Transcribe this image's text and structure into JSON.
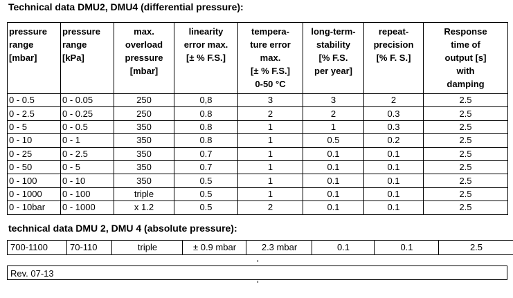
{
  "heading_differential": "Technical data DMU2, DMU4 (differential pressure):",
  "headers": [
    [
      "pressure",
      "range",
      "[mbar]"
    ],
    [
      "pressure",
      "range",
      "[kPa]"
    ],
    [
      "max.",
      "overload",
      "pressure",
      "[mbar]"
    ],
    [
      "linearity",
      "error max.",
      "[± % F.S.]"
    ],
    [
      "tempera-",
      "ture error",
      "max.",
      "[± % F.S.]",
      "0-50 °C"
    ],
    [
      "long-term-",
      "stability",
      "[% F.S.",
      "per year]"
    ],
    [
      "repeat-",
      "precision",
      "[% F. S.]"
    ],
    [
      "Response",
      "time of",
      "output [s]",
      "with",
      "damping"
    ]
  ],
  "rows": [
    [
      "0 - 0.5",
      "0 - 0.05",
      "250",
      "0,8",
      "3",
      "3",
      "2",
      "2.5"
    ],
    [
      "0 - 2.5",
      "0 - 0.25",
      "250",
      "0.8",
      "2",
      "2",
      "0.3",
      "2.5"
    ],
    [
      "0 - 5",
      "0 - 0.5",
      "350",
      "0.8",
      "1",
      "1",
      "0.3",
      "2.5"
    ],
    [
      "0 - 10",
      "0 - 1",
      "350",
      "0.8",
      "1",
      "0.5",
      "0.2",
      "2.5"
    ],
    [
      "0 - 25",
      "0 - 2.5",
      "350",
      "0.7",
      "1",
      "0.1",
      "0.1",
      "2.5"
    ],
    [
      "0 - 50",
      "0 - 5",
      "350",
      "0.7",
      "1",
      "0.1",
      "0.1",
      "2.5"
    ],
    [
      "0 - 100",
      "0 - 10",
      "350",
      "0.5",
      "1",
      "0.1",
      "0.1",
      "2.5"
    ],
    [
      "0 - 1000",
      "0 - 100",
      "triple",
      "0.5",
      "1",
      "0.1",
      "0.1",
      "2.5"
    ],
    [
      "0 - 10bar",
      "0 - 1000",
      "x 1.2",
      "0.5",
      "2",
      "0.1",
      "0.1",
      "2.5"
    ]
  ],
  "heading_absolute": "technical data DMU 2, DMU 4 (absolute pressure):",
  "absolute_row": [
    "700-1100",
    "70-110",
    "triple",
    "± 0.9 mbar",
    "2.3 mbar",
    "0.1",
    "0.1",
    "2.5"
  ],
  "revision": "Rev. 07-13"
}
